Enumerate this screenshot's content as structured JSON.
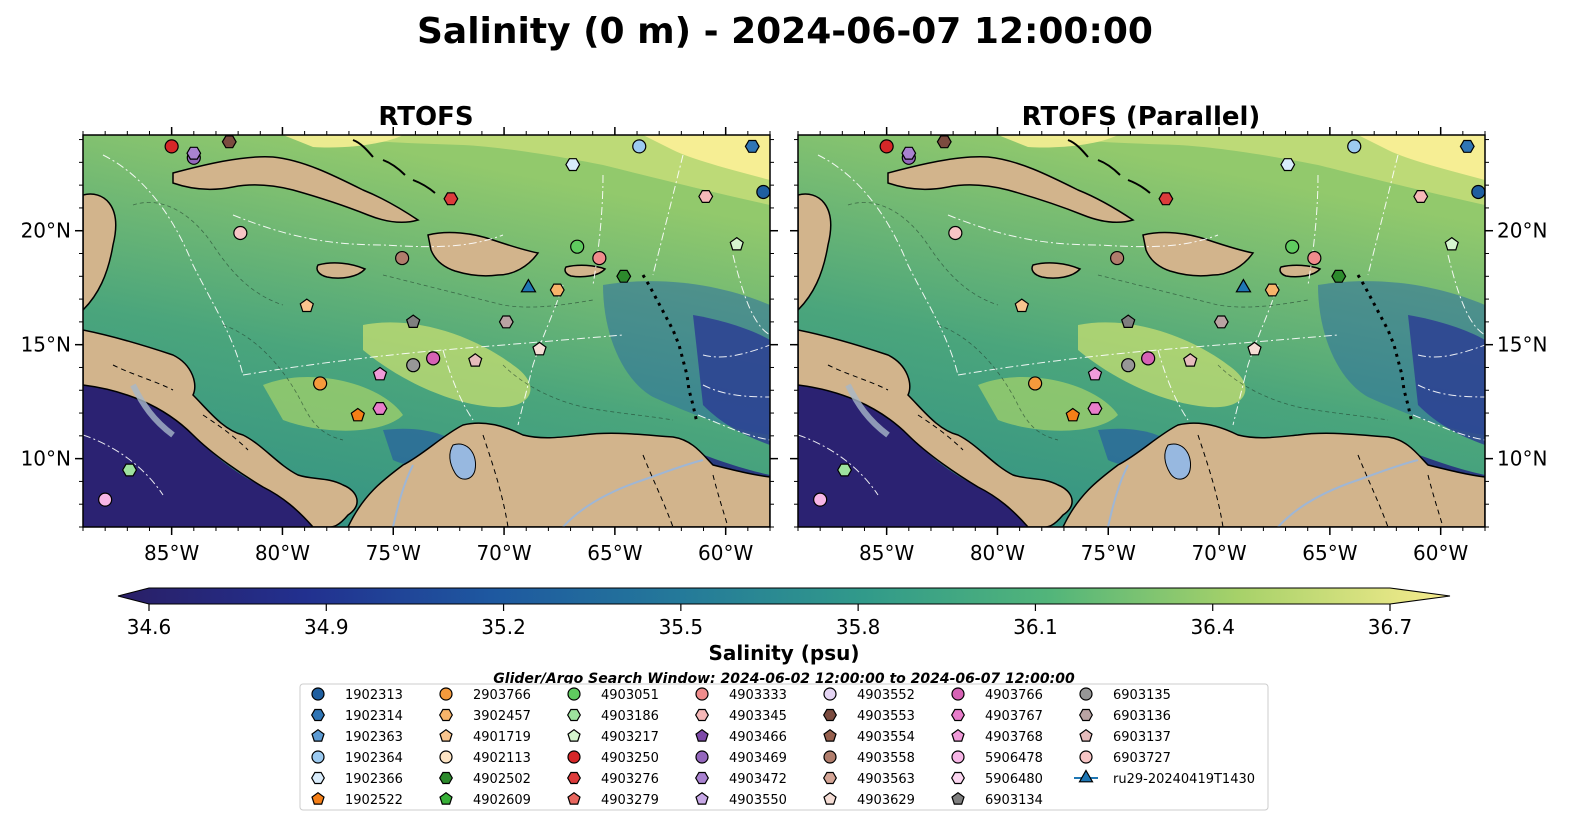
{
  "figure": {
    "title": "Salinity (0 m) - 2024-06-07 12:00:00",
    "panels": [
      {
        "title": "RTOFS"
      },
      {
        "title": "RTOFS (Parallel)"
      }
    ],
    "colorbar": {
      "label": "Salinity (psu)",
      "ticks": [
        "34.6",
        "34.9",
        "35.2",
        "35.5",
        "35.8",
        "36.1",
        "36.4",
        "36.7"
      ]
    },
    "search_window": "Glider/Argo Search Window: 2024-06-02 12:00:00 to 2024-06-07 12:00:00",
    "colors": {
      "land": "#d2b48c",
      "ocean_low": "#2a2370",
      "ocean_mid": "#3e9a86",
      "ocean_high": "#f6ee94",
      "frame": "#000000"
    }
  },
  "chart_data": [
    {
      "type": "heatmap",
      "title": "RTOFS",
      "variable": "Salinity (psu)",
      "depth": "0 m",
      "xlim": [
        -89,
        -58
      ],
      "ylim": [
        7,
        24.2
      ],
      "x_ticks": [
        "85°W",
        "80°W",
        "75°W",
        "70°W",
        "65°W",
        "60°W"
      ],
      "y_ticks": [
        "10°N",
        "15°N",
        "20°N"
      ],
      "color_range": [
        34.6,
        36.7
      ]
    },
    {
      "type": "heatmap",
      "title": "RTOFS (Parallel)",
      "variable": "Salinity (psu)",
      "depth": "0 m",
      "xlim": [
        -89,
        -58
      ],
      "ylim": [
        7,
        24.2
      ],
      "x_ticks": [
        "85°W",
        "80°W",
        "75°W",
        "70°W",
        "65°W",
        "60°W"
      ],
      "y_ticks": [
        "10°N",
        "15°N",
        "20°N"
      ],
      "color_range": [
        34.6,
        36.7
      ]
    }
  ],
  "platforms": [
    {
      "name": "1902313",
      "marker": "circle",
      "color": "#1f5fa0",
      "lon": -58.3,
      "lat": 21.7
    },
    {
      "name": "1902314",
      "marker": "hexagon",
      "color": "#2f75b5",
      "lon": -58.8,
      "lat": 23.7
    },
    {
      "name": "1902363",
      "marker": "pentagon",
      "color": "#5d9bd3",
      "lon": null,
      "lat": null
    },
    {
      "name": "1902364",
      "marker": "circle",
      "color": "#9ccaf0",
      "lon": -63.9,
      "lat": 23.7
    },
    {
      "name": "1902366",
      "marker": "hexagon",
      "color": "#d9ecfb",
      "lon": -66.9,
      "lat": 22.9
    },
    {
      "name": "1902522",
      "marker": "pentagon",
      "color": "#f57f17",
      "lon": -76.6,
      "lat": 11.9
    },
    {
      "name": "2903766",
      "marker": "circle",
      "color": "#f59a3c",
      "lon": -78.3,
      "lat": 13.3
    },
    {
      "name": "3902457",
      "marker": "hexagon",
      "color": "#f7b46a",
      "lon": -67.6,
      "lat": 17.4
    },
    {
      "name": "4901719",
      "marker": "pentagon",
      "color": "#f9c58e",
      "lon": -78.9,
      "lat": 16.7
    },
    {
      "name": "4902113",
      "marker": "circle",
      "color": "#fde4c4",
      "lon": null,
      "lat": null
    },
    {
      "name": "4902502",
      "marker": "hexagon",
      "color": "#2c8a2c",
      "lon": -64.6,
      "lat": 18.0
    },
    {
      "name": "4902609",
      "marker": "pentagon",
      "color": "#38b038",
      "lon": null,
      "lat": null
    },
    {
      "name": "4903051",
      "marker": "circle",
      "color": "#5fcb5f",
      "lon": -66.7,
      "lat": 19.3
    },
    {
      "name": "4903186",
      "marker": "hexagon",
      "color": "#9ee29e",
      "lon": -86.9,
      "lat": 9.5
    },
    {
      "name": "4903217",
      "marker": "pentagon",
      "color": "#d6f5cf",
      "lon": -59.5,
      "lat": 19.4
    },
    {
      "name": "4903250",
      "marker": "circle",
      "color": "#d62728",
      "lon": -85.0,
      "lat": 23.7
    },
    {
      "name": "4903276",
      "marker": "hexagon",
      "color": "#dc3b3b",
      "lon": -72.4,
      "lat": 21.4
    },
    {
      "name": "4903279",
      "marker": "pentagon",
      "color": "#e8675f",
      "lon": null,
      "lat": null
    },
    {
      "name": "4903333",
      "marker": "circle",
      "color": "#f08c8c",
      "lon": -65.7,
      "lat": 18.8
    },
    {
      "name": "4903345",
      "marker": "hexagon",
      "color": "#f6b8b8",
      "lon": -60.9,
      "lat": 21.5
    },
    {
      "name": "4903466",
      "marker": "pentagon",
      "color": "#7d49a8",
      "lon": null,
      "lat": null
    },
    {
      "name": "4903469",
      "marker": "circle",
      "color": "#9467bd",
      "lon": -84.0,
      "lat": 23.2
    },
    {
      "name": "4903472",
      "marker": "hexagon",
      "color": "#a982d0",
      "lon": -84.0,
      "lat": 23.4
    },
    {
      "name": "4903550",
      "marker": "pentagon",
      "color": "#c7a8e6",
      "lon": null,
      "lat": null
    },
    {
      "name": "4903552",
      "marker": "circle",
      "color": "#e4d4f3",
      "lon": null,
      "lat": null
    },
    {
      "name": "4903553",
      "marker": "hexagon",
      "color": "#7b4b3f",
      "lon": -82.4,
      "lat": 23.9
    },
    {
      "name": "4903554",
      "marker": "pentagon",
      "color": "#96604e",
      "lon": null,
      "lat": null
    },
    {
      "name": "4903558",
      "marker": "circle",
      "color": "#b07d6c",
      "lon": -74.6,
      "lat": 18.8
    },
    {
      "name": "4903563",
      "marker": "hexagon",
      "color": "#d4a596",
      "lon": null,
      "lat": null
    },
    {
      "name": "4903629",
      "marker": "pentagon",
      "color": "#f5ddd5",
      "lon": -68.4,
      "lat": 14.8
    },
    {
      "name": "4903766",
      "marker": "circle",
      "color": "#d662b5",
      "lon": -73.2,
      "lat": 14.4
    },
    {
      "name": "4903767",
      "marker": "hexagon",
      "color": "#e87dcb",
      "lon": -75.6,
      "lat": 12.2
    },
    {
      "name": "4903768",
      "marker": "pentagon",
      "color": "#f09bd9",
      "lon": -75.6,
      "lat": 13.7
    },
    {
      "name": "5906478",
      "marker": "circle",
      "color": "#f7b6e6",
      "lon": -88.0,
      "lat": 8.2
    },
    {
      "name": "5906480",
      "marker": "hexagon",
      "color": "#fbd6f0",
      "lon": null,
      "lat": null
    },
    {
      "name": "6903134",
      "marker": "pentagon",
      "color": "#7f7f7f",
      "lon": -74.1,
      "lat": 16.0
    },
    {
      "name": "6903135",
      "marker": "circle",
      "color": "#979797",
      "lon": -74.1,
      "lat": 14.1
    },
    {
      "name": "6903136",
      "marker": "hexagon",
      "color": "#b9a3a3",
      "lon": -69.9,
      "lat": 16.0
    },
    {
      "name": "6903137",
      "marker": "pentagon",
      "color": "#e6bcbc",
      "lon": -71.3,
      "lat": 14.3
    },
    {
      "name": "6903727",
      "marker": "circle",
      "color": "#f7c5c5",
      "lon": -81.9,
      "lat": 19.9
    },
    {
      "name": "ru29-20240419T1430",
      "marker": "triangle",
      "color": "#1f77b4",
      "lon": -68.9,
      "lat": 17.5
    }
  ]
}
